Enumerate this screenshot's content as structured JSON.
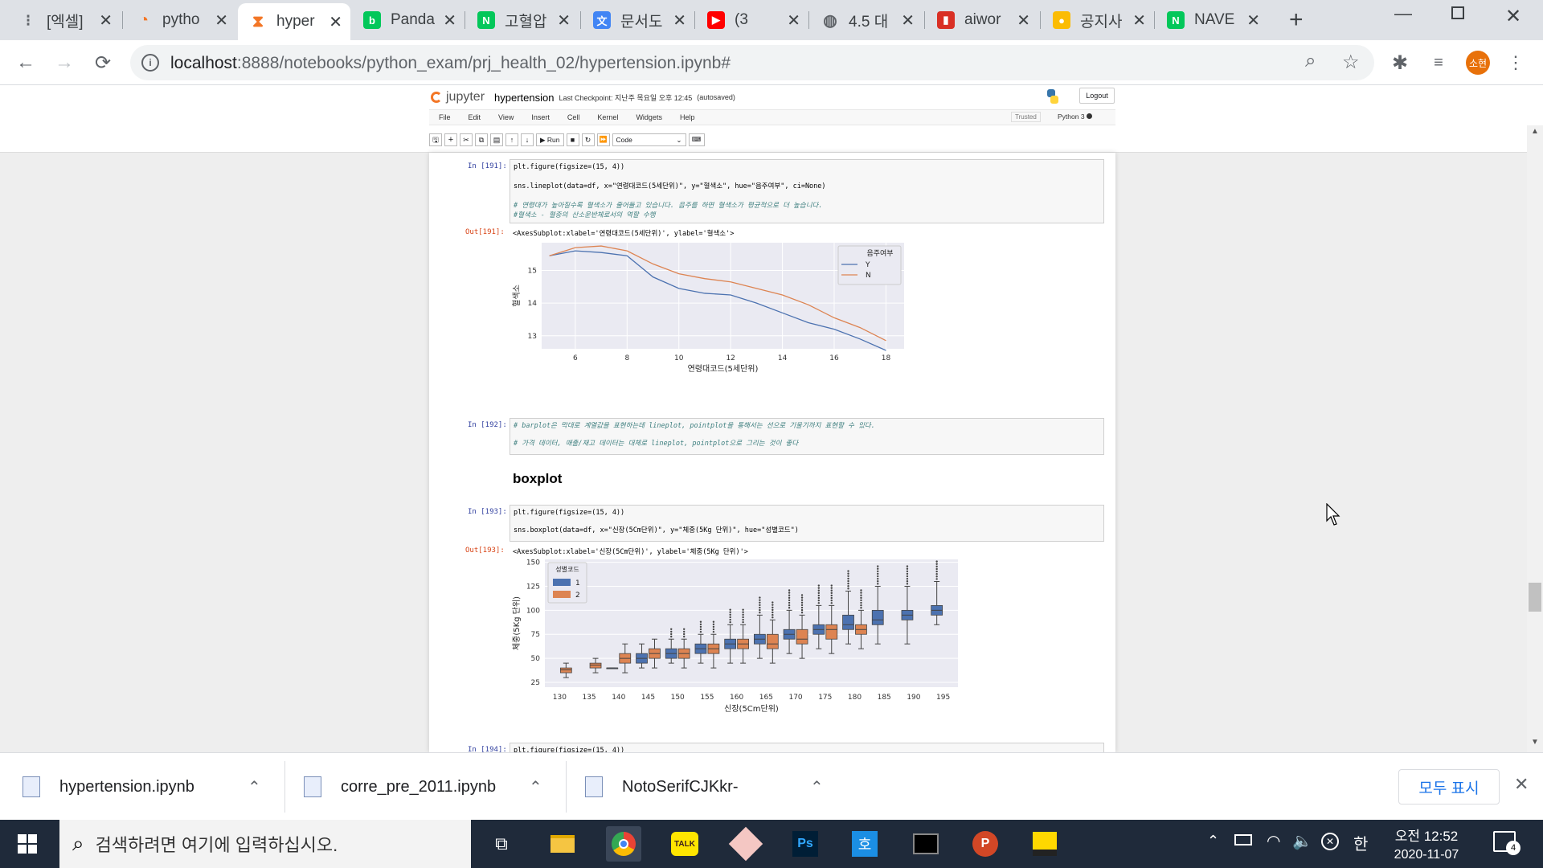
{
  "browser": {
    "tabs": [
      {
        "title": "[엑셀]",
        "icon": "dots-icon",
        "color": "#5f6368"
      },
      {
        "title": "pytho",
        "icon": "spinner-icon",
        "color": "#f37626"
      },
      {
        "title": "hyper",
        "icon": "hourglass-icon",
        "color": "#f37626"
      },
      {
        "title": "Panda",
        "icon": "blog-icon",
        "color": "#03c75a"
      },
      {
        "title": "고혈압",
        "icon": "naver-icon",
        "color": "#03c75a"
      },
      {
        "title": "문서도",
        "icon": "translate-icon",
        "color": "#4285f4"
      },
      {
        "title": "(3",
        "icon": "youtube-icon",
        "color": "#ff0000"
      },
      {
        "title": "4.5 대",
        "icon": "globe-icon",
        "color": "#5f6368"
      },
      {
        "title": "aiwor",
        "icon": "pdf-icon",
        "color": "#d93025"
      },
      {
        "title": "공지사",
        "icon": "coin-icon",
        "color": "#fbbc04"
      },
      {
        "title": "NAVE",
        "icon": "naver-icon",
        "color": "#03c75a"
      }
    ],
    "url_host": "localhost",
    "url_rest": ":8888/notebooks/python_exam/prj_health_02/hypertension.ipynb#",
    "profile_initials": "소현",
    "profile_color": "#e8710a"
  },
  "jupyter": {
    "logo_text": "jupyter",
    "notebook_name": "hypertension",
    "checkpoint": "Last Checkpoint: 지난주 목요일 오후 12:45",
    "autosaved": "(autosaved)",
    "logout": "Logout",
    "menu": [
      "File",
      "Edit",
      "View",
      "Insert",
      "Cell",
      "Kernel",
      "Widgets",
      "Help"
    ],
    "trusted": "Trusted",
    "kernel": "Python 3",
    "run_label": "Run",
    "cell_type": "Code"
  },
  "cells": {
    "c191": {
      "prompt_in": "In [191]:",
      "line1": "plt.figure(figsize=(15, 4))",
      "line2": "sns.lineplot(data=df, x=\"연령대코드(5세단위)\", y=\"혈색소\", hue=\"음주여부\", ci=None)",
      "line3": "# 연령대가 높아질수록 혈색소가 줄어들고 있습니다. 음주를 하면 혈색소가 평균적으로 더 높습니다.",
      "line4": "#혈색소 - 혈중의 산소운반체로서의 역할 수행",
      "prompt_out": "Out[191]:",
      "out_text": "<AxesSubplot:xlabel='연령대코드(5세단위)', ylabel='혈색소'>"
    },
    "c192": {
      "prompt_in": "In [192]:",
      "line1": "# barplot은 막대로 계열값을 표현하는데 lineplot, pointplot을 통해서는 선으로 기울기까지 표현할 수 있다.",
      "line2": "# 가격 데이터, 매출/재고 데이터는 대체로 lineplot, pointplot으로 그리는 것이 좋다"
    },
    "heading": "boxplot",
    "c193": {
      "prompt_in": "In [193]:",
      "line1": "plt.figure(figsize=(15, 4))",
      "line2": "sns.boxplot(data=df, x=\"신장(5Cm단위)\", y=\"체중(5Kg 단위)\", hue=\"성별코드\")",
      "prompt_out": "Out[193]:",
      "out_text": "<AxesSubplot:xlabel='신장(5Cm단위)', ylabel='체중(5Kg 단위)'>"
    },
    "c194": {
      "prompt_in": "In [194]:",
      "line1": "plt.figure(figsize=(15, 4))"
    }
  },
  "chart_data": [
    {
      "type": "line",
      "xlabel": "연령대코드(5세단위)",
      "ylabel": "혈색소",
      "x": [
        5,
        6,
        7,
        8,
        9,
        10,
        11,
        12,
        13,
        14,
        15,
        16,
        17,
        18
      ],
      "xticks": [
        6,
        8,
        10,
        12,
        14,
        16,
        18
      ],
      "yticks": [
        13,
        14,
        15
      ],
      "xlim": [
        4.7,
        18.7
      ],
      "ylim": [
        12.6,
        15.85
      ],
      "legend_title": "음주여부",
      "legend_position": "top-right",
      "grid": true,
      "series": [
        {
          "name": "Y",
          "color": "#4c72b0",
          "values": [
            15.45,
            15.6,
            15.55,
            15.45,
            14.8,
            14.45,
            14.3,
            14.25,
            14.0,
            13.7,
            13.4,
            13.2,
            12.9,
            12.55
          ]
        },
        {
          "name": "N",
          "color": "#dd8452",
          "values": [
            15.45,
            15.7,
            15.75,
            15.6,
            15.2,
            14.9,
            14.75,
            14.65,
            14.45,
            14.25,
            13.95,
            13.55,
            13.25,
            12.85
          ]
        }
      ]
    },
    {
      "type": "box",
      "xlabel": "신장(5Cm단위)",
      "ylabel": "체중(5Kg 단위)",
      "categories": [
        "130",
        "135",
        "140",
        "145",
        "150",
        "155",
        "160",
        "165",
        "170",
        "175",
        "180",
        "185",
        "190",
        "195"
      ],
      "yticks": [
        25,
        50,
        75,
        100,
        125,
        150
      ],
      "ylim": [
        20,
        153
      ],
      "legend_title": "성별코드",
      "legend_position": "top-left",
      "grid": true,
      "series": [
        {
          "name": "1",
          "color": "#4c72b0",
          "boxes": [
            null,
            null,
            [
              40,
              40,
              40,
              40,
              40
            ],
            [
              40,
              45,
              50,
              55,
              65
            ],
            [
              45,
              50,
              55,
              60,
              70
            ],
            [
              45,
              55,
              60,
              65,
              75
            ],
            [
              45,
              60,
              65,
              70,
              85
            ],
            [
              50,
              65,
              70,
              75,
              95
            ],
            [
              55,
              70,
              75,
              80,
              100
            ],
            [
              60,
              75,
              80,
              85,
              105
            ],
            [
              65,
              80,
              85,
              95,
              120
            ],
            [
              65,
              85,
              90,
              100,
              125
            ],
            [
              65,
              90,
              95,
              100,
              125
            ],
            [
              85,
              95,
              100,
              105,
              130
            ]
          ]
        },
        {
          "name": "2",
          "color": "#dd8452",
          "boxes": [
            [
              30,
              35,
              38,
              40,
              45
            ],
            [
              35,
              40,
              43,
              45,
              50
            ],
            [
              35,
              45,
              50,
              55,
              65
            ],
            [
              40,
              50,
              55,
              60,
              70
            ],
            [
              40,
              50,
              55,
              60,
              70
            ],
            [
              40,
              55,
              60,
              65,
              75
            ],
            [
              45,
              60,
              65,
              70,
              85
            ],
            [
              45,
              60,
              65,
              75,
              90
            ],
            [
              50,
              65,
              70,
              80,
              95
            ],
            [
              55,
              70,
              80,
              85,
              105
            ],
            [
              60,
              75,
              80,
              85,
              100
            ],
            null,
            null,
            null
          ]
        }
      ]
    }
  ],
  "downloads": [
    {
      "name": "hypertension.ipynb"
    },
    {
      "name": "corre_pre_2011.ipynb"
    },
    {
      "name": "NotoSerifCJKkr-"
    }
  ],
  "show_all": "모두 표시",
  "taskbar": {
    "search_placeholder": "검색하려면 여기에 입력하십시오.",
    "time": "오전 12:52",
    "date": "2020-11-07",
    "ime": "한",
    "notifications": "4"
  }
}
